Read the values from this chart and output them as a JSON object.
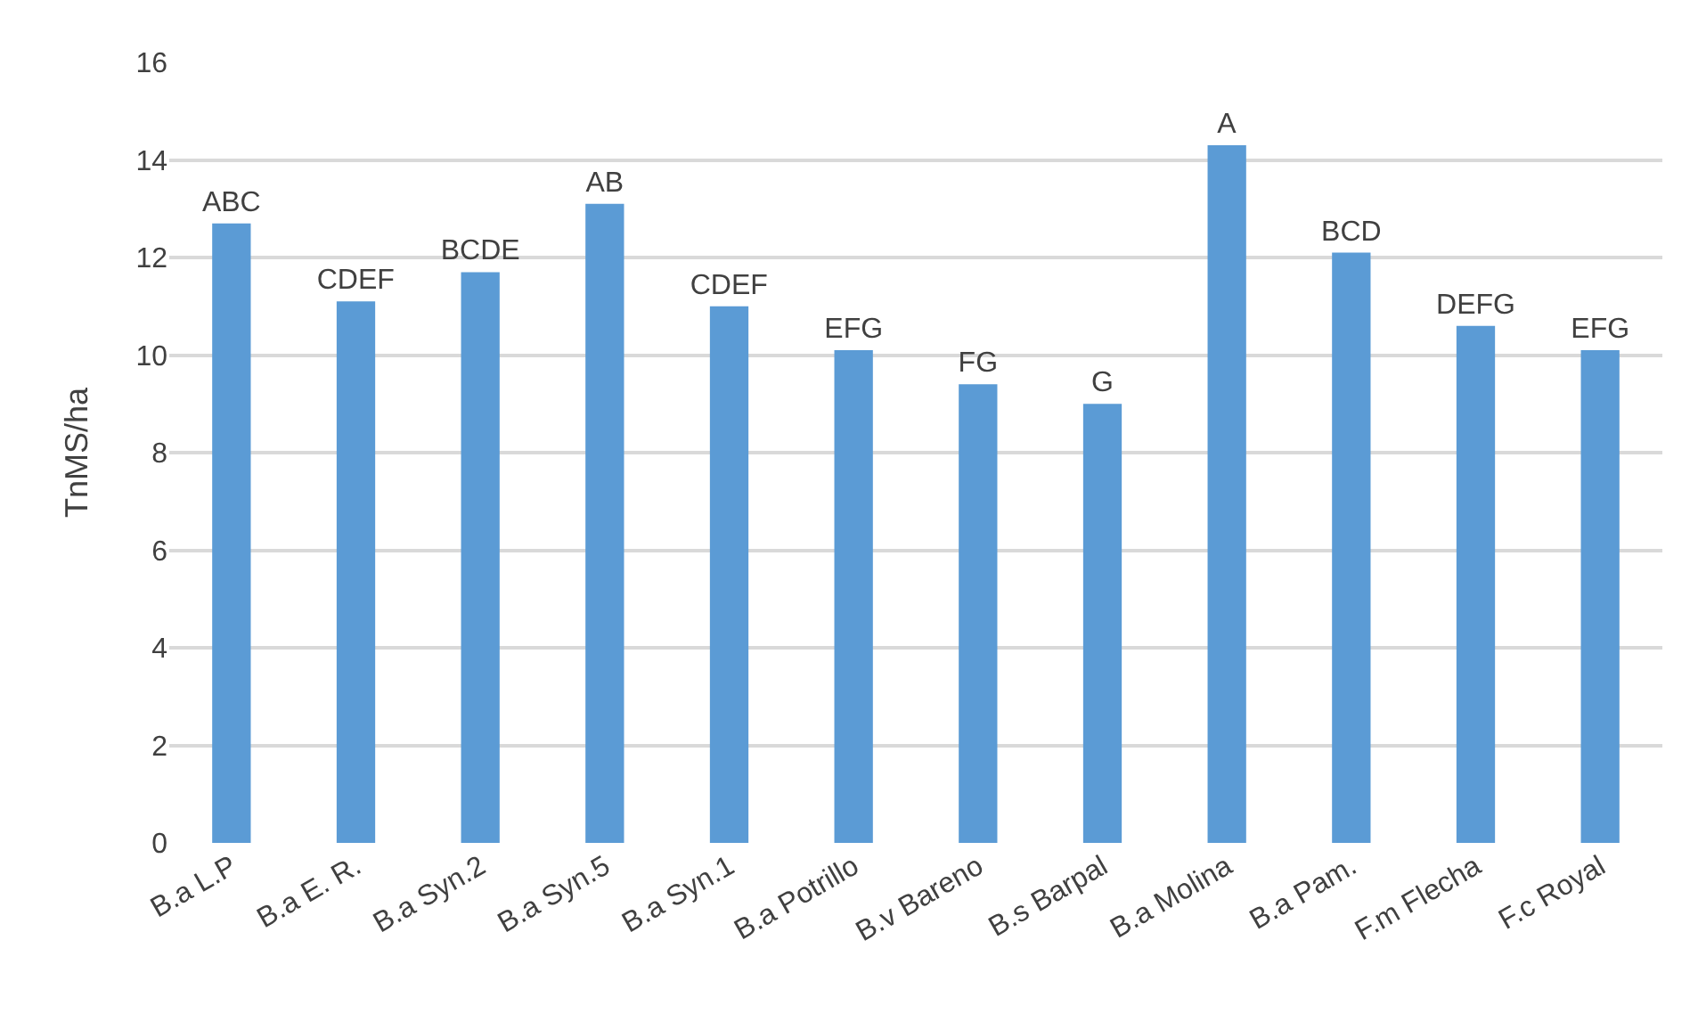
{
  "chart_data": {
    "type": "bar",
    "ylabel": "TnMS/ha",
    "categories": [
      "B.a L.P",
      "B.a E. R.",
      "B.a Syn.2",
      "B.a Syn.5",
      "B.a Syn.1",
      "B.a Potrillo",
      "B.v Bareno",
      "B.s Barpal",
      "B.a Molina",
      "B.a Pam.",
      "F.m Flecha",
      "F.c Royal"
    ],
    "values": [
      12.7,
      11.1,
      11.7,
      13.1,
      11.0,
      10.1,
      9.4,
      9.0,
      14.3,
      12.1,
      10.6,
      10.1
    ],
    "value_labels": [
      "ABC",
      "CDEF",
      "BCDE",
      "AB",
      "CDEF",
      "EFG",
      "FG",
      "G",
      "A",
      "BCD",
      "DEFG",
      "EFG"
    ],
    "color": "#5b9bd5",
    "ylim": [
      0,
      16
    ],
    "yticks": [
      0,
      2,
      4,
      6,
      8,
      10,
      12,
      14,
      16
    ],
    "grid": "y"
  }
}
